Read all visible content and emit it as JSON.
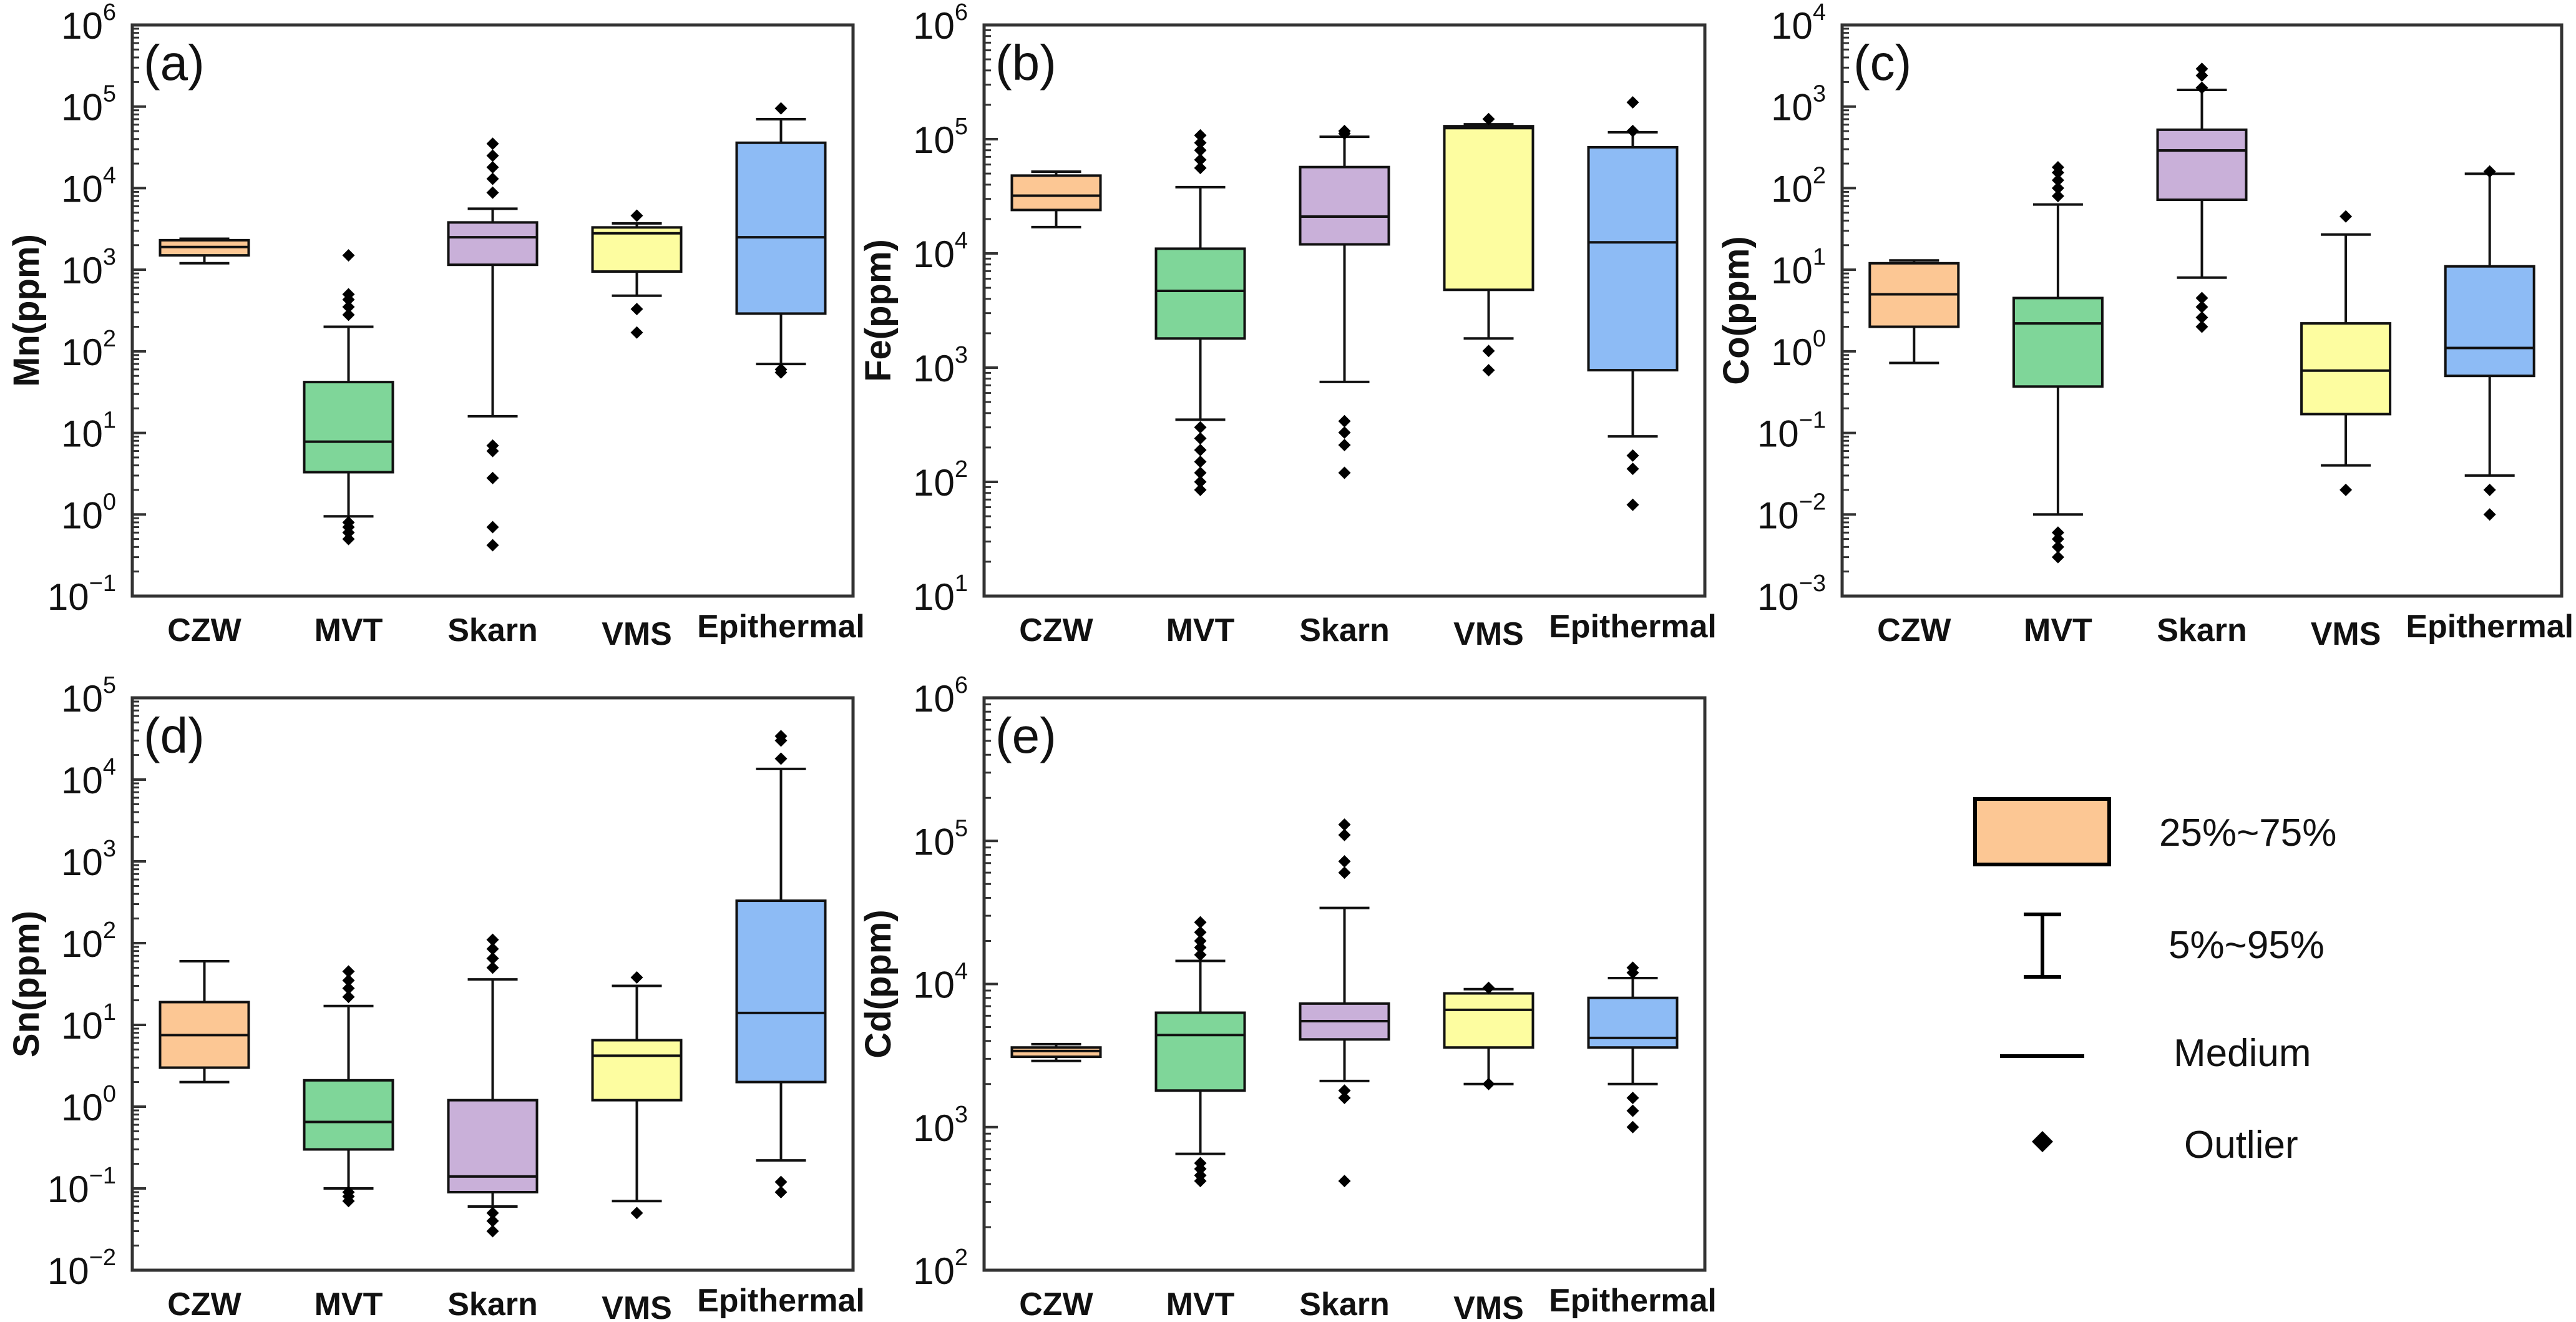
{
  "figure": {
    "categories": [
      "CZW",
      "MVT",
      "Skarn",
      "VMS",
      "Epithermal"
    ],
    "colors": {
      "CZW": "#FCC794",
      "MVT": "#7FD699",
      "Skarn": "#C9B0D9",
      "VMS": "#FDFDA0",
      "Epithermal": "#8DBBF5"
    }
  },
  "legend": {
    "box_label": "25%~75%",
    "whisker_label": "5%~95%",
    "median_label": "Medium",
    "outlier_label": "Outlier"
  },
  "chart_data": [
    {
      "type": "box",
      "panel": "(a)",
      "ylabel": "Mn(ppm)",
      "yscale": "log",
      "ylim_exp": [
        -1,
        6
      ],
      "categories": [
        "CZW",
        "MVT",
        "Skarn",
        "VMS",
        "Epithermal"
      ],
      "boxes": [
        {
          "q1": 1500,
          "median": 1900,
          "q3": 2300,
          "p5": 1200,
          "p95": 2400,
          "outliers": []
        },
        {
          "q1": 3.3,
          "median": 7.8,
          "q3": 42,
          "p5": 0.95,
          "p95": 200,
          "outliers": [
            0.5,
            0.6,
            0.7,
            0.8,
            280,
            350,
            430,
            500,
            1500
          ]
        },
        {
          "q1": 1150,
          "median": 2500,
          "q3": 3800,
          "p5": 16,
          "p95": 5600,
          "outliers": [
            0.42,
            0.7,
            2.8,
            6,
            7,
            8800,
            13000,
            18000,
            25000,
            35000
          ]
        },
        {
          "q1": 950,
          "median": 2800,
          "q3": 3300,
          "p5": 480,
          "p95": 3700,
          "outliers": [
            170,
            330,
            4600
          ]
        },
        {
          "q1": 290,
          "median": 2500,
          "q3": 36000,
          "p5": 70,
          "p95": 70000,
          "outliers": [
            55,
            60,
            95000
          ]
        }
      ]
    },
    {
      "type": "box",
      "panel": "(b)",
      "ylabel": "Fe(ppm)",
      "yscale": "log",
      "ylim_exp": [
        1,
        6
      ],
      "categories": [
        "CZW",
        "MVT",
        "Skarn",
        "VMS",
        "Epithermal"
      ],
      "boxes": [
        {
          "q1": 24000,
          "median": 32000,
          "q3": 48000,
          "p5": 17000,
          "p95": 52000,
          "outliers": []
        },
        {
          "q1": 1800,
          "median": 4700,
          "q3": 11000,
          "p5": 350,
          "p95": 38000,
          "outliers": [
            85,
            100,
            120,
            150,
            190,
            240,
            300,
            56000,
            66000,
            80000,
            93000,
            108000
          ]
        },
        {
          "q1": 12000,
          "median": 21000,
          "q3": 57000,
          "p5": 750,
          "p95": 105000,
          "outliers": [
            120,
            210,
            270,
            340,
            112000,
            118000
          ]
        },
        {
          "q1": 4800,
          "median": 125000,
          "q3": 130000,
          "p5": 1800,
          "p95": 135000,
          "outliers": [
            950,
            1400,
            150000
          ]
        },
        {
          "q1": 950,
          "median": 12500,
          "q3": 85000,
          "p5": 250,
          "p95": 115000,
          "outliers": [
            63,
            130,
            170,
            118000,
            210000
          ]
        }
      ]
    },
    {
      "type": "box",
      "panel": "(c)",
      "ylabel": "Co(ppm)",
      "yscale": "log",
      "ylim_exp": [
        -3,
        4
      ],
      "categories": [
        "CZW",
        "MVT",
        "Skarn",
        "VMS",
        "Epithermal"
      ],
      "boxes": [
        {
          "q1": 2.0,
          "median": 5.0,
          "q3": 12,
          "p5": 0.72,
          "p95": 13,
          "outliers": []
        },
        {
          "q1": 0.37,
          "median": 2.2,
          "q3": 4.5,
          "p5": 0.01,
          "p95": 63,
          "outliers": [
            0.003,
            0.004,
            0.005,
            0.006,
            80,
            100,
            125,
            155,
            180
          ]
        },
        {
          "q1": 72,
          "median": 290,
          "q3": 520,
          "p5": 8,
          "p95": 1600,
          "outliers": [
            2,
            2.6,
            3.5,
            4.5,
            1700,
            2400,
            2900
          ]
        },
        {
          "q1": 0.17,
          "median": 0.58,
          "q3": 2.2,
          "p5": 0.04,
          "p95": 27,
          "outliers": [
            0.02,
            45
          ]
        },
        {
          "q1": 0.5,
          "median": 1.1,
          "q3": 11,
          "p5": 0.03,
          "p95": 150,
          "outliers": [
            0.01,
            0.02,
            160
          ]
        }
      ]
    },
    {
      "type": "box",
      "panel": "(d)",
      "ylabel": "Sn(ppm)",
      "yscale": "log",
      "ylim_exp": [
        -2,
        5
      ],
      "categories": [
        "CZW",
        "MVT",
        "Skarn",
        "VMS",
        "Epithermal"
      ],
      "boxes": [
        {
          "q1": 3.0,
          "median": 7.5,
          "q3": 19,
          "p5": 2.0,
          "p95": 60,
          "outliers": []
        },
        {
          "q1": 0.3,
          "median": 0.65,
          "q3": 2.1,
          "p5": 0.1,
          "p95": 17,
          "outliers": [
            0.07,
            0.08,
            0.09,
            22,
            28,
            35,
            45
          ]
        },
        {
          "q1": 0.09,
          "median": 0.14,
          "q3": 1.2,
          "p5": 0.06,
          "p95": 36,
          "outliers": [
            0.03,
            0.04,
            0.05,
            50,
            65,
            85,
            110
          ]
        },
        {
          "q1": 1.2,
          "median": 4.2,
          "q3": 6.5,
          "p5": 0.07,
          "p95": 30,
          "outliers": [
            0.05,
            38
          ]
        },
        {
          "q1": 2.0,
          "median": 14,
          "q3": 330,
          "p5": 0.22,
          "p95": 13500,
          "outliers": [
            0.09,
            0.12,
            18000,
            30000,
            34000
          ]
        }
      ]
    },
    {
      "type": "box",
      "panel": "(e)",
      "ylabel": "Cd(ppm)",
      "yscale": "log",
      "ylim_exp": [
        2,
        6
      ],
      "categories": [
        "CZW",
        "MVT",
        "Skarn",
        "VMS",
        "Epithermal"
      ],
      "boxes": [
        {
          "q1": 3100,
          "median": 3400,
          "q3": 3600,
          "p5": 2900,
          "p95": 3800,
          "outliers": []
        },
        {
          "q1": 1800,
          "median": 4400,
          "q3": 6300,
          "p5": 650,
          "p95": 14500,
          "outliers": [
            420,
            460,
            510,
            560,
            16000,
            18000,
            20000,
            23000,
            27000
          ]
        },
        {
          "q1": 4100,
          "median": 5500,
          "q3": 7300,
          "p5": 2100,
          "p95": 34000,
          "outliers": [
            420,
            1600,
            1800,
            60000,
            72000,
            110000,
            130000
          ]
        },
        {
          "q1": 3600,
          "median": 6600,
          "q3": 8600,
          "p5": 2000,
          "p95": 9200,
          "outliers": [
            2000,
            9400
          ]
        },
        {
          "q1": 3600,
          "median": 4200,
          "q3": 8000,
          "p5": 2000,
          "p95": 11000,
          "outliers": [
            1000,
            1300,
            1600,
            12000,
            13000
          ]
        }
      ]
    }
  ]
}
